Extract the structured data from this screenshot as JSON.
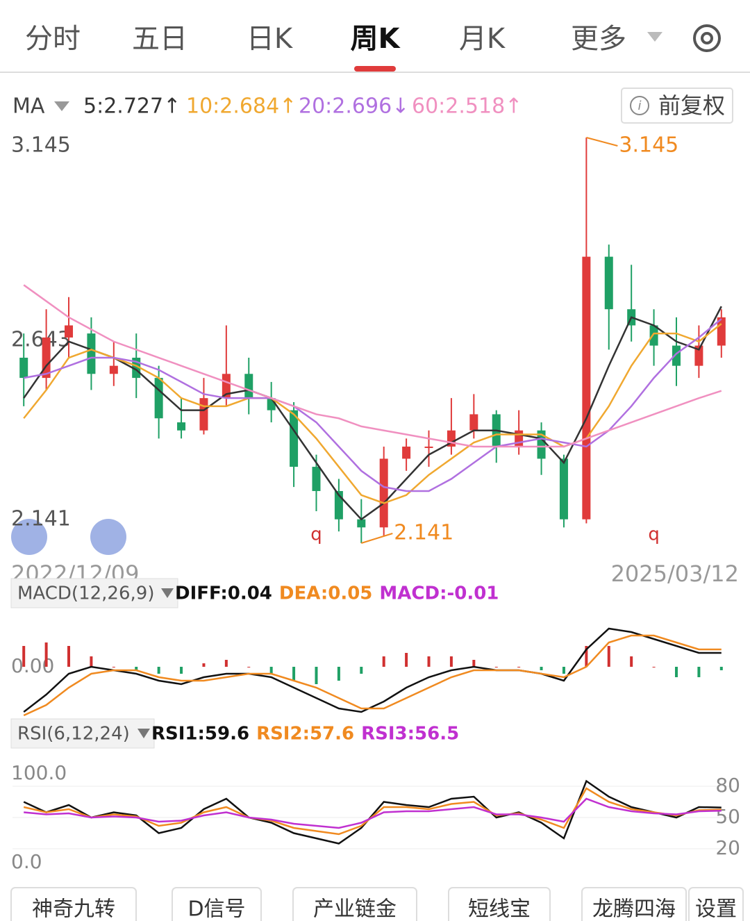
{
  "tabs": [
    "分时",
    "五日",
    "日K",
    "周K",
    "月K",
    "更多"
  ],
  "active_tab": 3,
  "adjust_button": "前复权",
  "chart_data": [
    {
      "type": "candlestick",
      "indicator": "MA",
      "candles": [
        [
          2.6,
          2.66,
          2.48,
          2.55
        ],
        [
          2.55,
          2.72,
          2.52,
          2.65
        ],
        [
          2.65,
          2.75,
          2.6,
          2.68
        ],
        [
          2.66,
          2.7,
          2.52,
          2.56
        ],
        [
          2.56,
          2.64,
          2.53,
          2.58
        ],
        [
          2.6,
          2.66,
          2.5,
          2.55
        ],
        [
          2.55,
          2.58,
          2.4,
          2.45
        ],
        [
          2.44,
          2.5,
          2.4,
          2.42
        ],
        [
          2.42,
          2.55,
          2.41,
          2.5
        ],
        [
          2.5,
          2.68,
          2.48,
          2.56
        ],
        [
          2.56,
          2.6,
          2.46,
          2.5
        ],
        [
          2.5,
          2.54,
          2.44,
          2.47
        ],
        [
          2.47,
          2.49,
          2.28,
          2.33
        ],
        [
          2.33,
          2.36,
          2.22,
          2.27
        ],
        [
          2.27,
          2.3,
          2.17,
          2.2
        ],
        [
          2.2,
          2.25,
          2.141,
          2.18
        ],
        [
          2.18,
          2.38,
          2.16,
          2.35
        ],
        [
          2.35,
          2.4,
          2.32,
          2.38
        ],
        [
          2.38,
          2.42,
          2.33,
          2.38
        ],
        [
          2.38,
          2.5,
          2.36,
          2.42
        ],
        [
          2.42,
          2.51,
          2.4,
          2.46
        ],
        [
          2.46,
          2.47,
          2.34,
          2.38
        ],
        [
          2.38,
          2.47,
          2.36,
          2.42
        ],
        [
          2.42,
          2.44,
          2.31,
          2.35
        ],
        [
          2.35,
          2.36,
          2.18,
          2.2
        ],
        [
          2.2,
          3.145,
          2.19,
          2.85
        ],
        [
          2.85,
          2.88,
          2.62,
          2.72
        ],
        [
          2.72,
          2.83,
          2.64,
          2.68
        ],
        [
          2.68,
          2.72,
          2.58,
          2.63
        ],
        [
          2.63,
          2.7,
          2.53,
          2.58
        ],
        [
          2.58,
          2.68,
          2.55,
          2.63
        ],
        [
          2.63,
          2.72,
          2.6,
          2.7
        ]
      ],
      "up_color": "#e03b3b",
      "down_color": "#1fa065",
      "series": [
        {
          "legend": "5:2.727↑",
          "color": "#333333",
          "values": [
            2.5,
            2.58,
            2.64,
            2.62,
            2.6,
            2.57,
            2.52,
            2.47,
            2.47,
            2.51,
            2.52,
            2.5,
            2.42,
            2.34,
            2.26,
            2.2,
            2.24,
            2.3,
            2.36,
            2.39,
            2.42,
            2.42,
            2.41,
            2.4,
            2.34,
            2.45,
            2.58,
            2.7,
            2.68,
            2.64,
            2.62,
            2.727
          ]
        },
        {
          "legend": "10:2.684↑",
          "color": "#f0a830",
          "values": [
            2.45,
            2.52,
            2.6,
            2.62,
            2.6,
            2.58,
            2.55,
            2.5,
            2.48,
            2.48,
            2.5,
            2.5,
            2.46,
            2.4,
            2.33,
            2.26,
            2.24,
            2.26,
            2.31,
            2.35,
            2.39,
            2.41,
            2.41,
            2.41,
            2.38,
            2.4,
            2.48,
            2.58,
            2.66,
            2.66,
            2.64,
            2.684
          ]
        },
        {
          "legend": "20:2.696↓",
          "color": "#b070e0",
          "values": [
            2.55,
            2.56,
            2.58,
            2.6,
            2.6,
            2.59,
            2.57,
            2.54,
            2.51,
            2.5,
            2.5,
            2.5,
            2.48,
            2.44,
            2.38,
            2.32,
            2.28,
            2.27,
            2.27,
            2.3,
            2.34,
            2.38,
            2.39,
            2.4,
            2.39,
            2.38,
            2.42,
            2.48,
            2.55,
            2.61,
            2.65,
            2.696
          ]
        },
        {
          "legend": "60:2.518↑",
          "color": "#f090c0",
          "values": [
            2.78,
            2.74,
            2.7,
            2.67,
            2.64,
            2.62,
            2.6,
            2.58,
            2.56,
            2.54,
            2.52,
            2.5,
            2.48,
            2.46,
            2.45,
            2.43,
            2.42,
            2.41,
            2.4,
            2.39,
            2.38,
            2.38,
            2.38,
            2.38,
            2.38,
            2.4,
            2.42,
            2.44,
            2.46,
            2.48,
            2.5,
            2.518
          ]
        }
      ],
      "ylim": [
        2.141,
        3.145
      ],
      "yticks": [
        3.145,
        2.643,
        2.141
      ],
      "annotations": [
        {
          "label": "3.145",
          "candle": 25
        },
        {
          "label": "2.141",
          "candle": 15
        }
      ],
      "markers": [
        {
          "label": "q",
          "candle": 13
        },
        {
          "label": "q",
          "candle": 28
        }
      ],
      "x_labels": [
        "2022/12/09",
        "2025/03/12"
      ]
    },
    {
      "type": "macd",
      "button": "MACD(12,26,9)",
      "histogram": {
        "values": [
          0.06,
          0.07,
          0.06,
          0.03,
          0.0,
          -0.01,
          -0.02,
          -0.02,
          0.01,
          0.02,
          0.0,
          -0.02,
          -0.04,
          -0.05,
          -0.04,
          -0.02,
          0.03,
          0.04,
          0.03,
          0.03,
          0.02,
          0.0,
          0.0,
          -0.01,
          -0.02,
          0.06,
          0.06,
          0.03,
          0.0,
          -0.03,
          -0.03,
          -0.01
        ],
        "legend": "MACD:-0.01",
        "color": "#c030d0"
      },
      "series": [
        {
          "legend": "DIFF:0.04",
          "color": "#111111",
          "values": [
            -0.13,
            -0.08,
            -0.02,
            0.0,
            -0.01,
            -0.02,
            -0.04,
            -0.05,
            -0.03,
            -0.02,
            -0.02,
            -0.03,
            -0.06,
            -0.09,
            -0.12,
            -0.13,
            -0.1,
            -0.06,
            -0.03,
            -0.01,
            0.0,
            -0.01,
            -0.01,
            -0.02,
            -0.04,
            0.05,
            0.11,
            0.1,
            0.08,
            0.06,
            0.04,
            0.04
          ]
        },
        {
          "legend": "DEA:0.05",
          "color": "#f08a20",
          "values": [
            -0.14,
            -0.11,
            -0.06,
            -0.02,
            -0.01,
            -0.01,
            -0.03,
            -0.04,
            -0.04,
            -0.03,
            -0.02,
            -0.02,
            -0.04,
            -0.06,
            -0.09,
            -0.12,
            -0.12,
            -0.09,
            -0.06,
            -0.03,
            -0.01,
            -0.01,
            -0.01,
            -0.02,
            -0.03,
            0.0,
            0.07,
            0.09,
            0.09,
            0.07,
            0.05,
            0.05
          ]
        }
      ],
      "ylim": [
        -0.16,
        0.12
      ],
      "yticks": [
        {
          "value": 0,
          "label": "0.00"
        }
      ]
    },
    {
      "type": "rsi",
      "button": "RSI(6,12,24)",
      "series": [
        {
          "legend": "RSI1:59.6",
          "color": "#111111",
          "values": [
            65,
            55,
            62,
            50,
            55,
            52,
            35,
            40,
            58,
            68,
            50,
            45,
            35,
            30,
            25,
            40,
            65,
            62,
            60,
            68,
            70,
            50,
            55,
            45,
            30,
            85,
            70,
            60,
            55,
            50,
            60,
            59.6
          ]
        },
        {
          "legend": "RSI2:57.6",
          "color": "#f08a20",
          "values": [
            60,
            55,
            58,
            50,
            53,
            51,
            42,
            45,
            55,
            60,
            50,
            47,
            40,
            37,
            34,
            42,
            60,
            60,
            58,
            63,
            65,
            52,
            54,
            48,
            40,
            78,
            65,
            58,
            55,
            52,
            57,
            57.6
          ]
        },
        {
          "legend": "RSI3:56.5",
          "color": "#c030d0",
          "values": [
            55,
            53,
            54,
            50,
            51,
            50,
            46,
            47,
            52,
            55,
            50,
            48,
            44,
            42,
            40,
            45,
            55,
            56,
            56,
            58,
            60,
            53,
            53,
            50,
            46,
            68,
            60,
            56,
            54,
            53,
            56,
            56.5
          ]
        }
      ],
      "ylim": [
        0,
        100
      ],
      "yticks": [
        {
          "value": 100,
          "label": "100.0"
        },
        {
          "value": 0,
          "label": "0.0"
        }
      ],
      "y2ticks": [
        80,
        50,
        20
      ]
    }
  ],
  "tool_buttons": [
    "神奇九转",
    "D信号",
    "产业链金",
    "短线宝",
    "龙腾四海",
    "设置"
  ]
}
